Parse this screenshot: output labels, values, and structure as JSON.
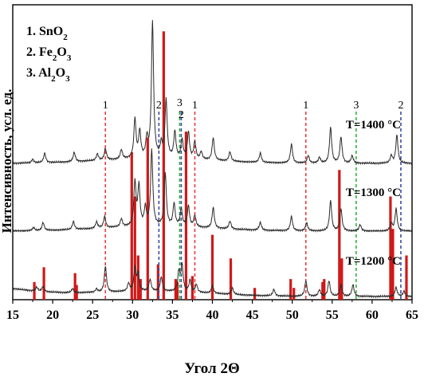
{
  "chart_data": {
    "type": "line",
    "xlabel": "Угол 2Θ",
    "ylabel": "Интенсивность, усл. ед.",
    "xlim": [
      15,
      65
    ],
    "x_ticks": [
      15,
      20,
      25,
      30,
      35,
      40,
      45,
      50,
      55,
      60,
      65
    ],
    "legend": [
      "1. SnO2",
      "2. Fe2O3",
      "3. Al2O3"
    ],
    "legend_placement": "top-left",
    "series": [
      {
        "name": "T=1400 °C",
        "peaks": [
          [
            17.5,
            4
          ],
          [
            19,
            10
          ],
          [
            22.7,
            10
          ],
          [
            25.6,
            7
          ],
          [
            26.6,
            12
          ],
          [
            28.6,
            10
          ],
          [
            30.3,
            42
          ],
          [
            30.9,
            28
          ],
          [
            31.8,
            20
          ],
          [
            32.5,
            145
          ],
          [
            33.6,
            14
          ],
          [
            34.2,
            62
          ],
          [
            35.3,
            28
          ],
          [
            36.2,
            20
          ],
          [
            37.0,
            28
          ],
          [
            37.8,
            18
          ],
          [
            38.6,
            8
          ],
          [
            40.1,
            24
          ],
          [
            42.2,
            10
          ],
          [
            46.0,
            10
          ],
          [
            49.9,
            20
          ],
          [
            52.0,
            8
          ],
          [
            53.4,
            6
          ],
          [
            54.8,
            38
          ],
          [
            56.1,
            28
          ],
          [
            57.5,
            8
          ],
          [
            62.4,
            8
          ],
          [
            63.1,
            30
          ]
        ]
      },
      {
        "name": "T=1300 °C",
        "peaks": [
          [
            17.6,
            4
          ],
          [
            18.8,
            10
          ],
          [
            22.6,
            10
          ],
          [
            25.5,
            8
          ],
          [
            26.5,
            14
          ],
          [
            28.6,
            10
          ],
          [
            30.3,
            55
          ],
          [
            30.8,
            50
          ],
          [
            31.6,
            22
          ],
          [
            32.4,
            95
          ],
          [
            34.1,
            66
          ],
          [
            35.2,
            28
          ],
          [
            36.1,
            22
          ],
          [
            37.0,
            26
          ],
          [
            37.8,
            14
          ],
          [
            40.1,
            26
          ],
          [
            42.2,
            10
          ],
          [
            46.0,
            10
          ],
          [
            49.9,
            18
          ],
          [
            51.8,
            10
          ],
          [
            54.8,
            38
          ],
          [
            56.1,
            28
          ],
          [
            58.5,
            8
          ],
          [
            62.4,
            10
          ],
          [
            63.0,
            28
          ]
        ]
      },
      {
        "name": "T=1200 °C",
        "peaks": [
          [
            18.0,
            6
          ],
          [
            18.8,
            8
          ],
          [
            22.5,
            6
          ],
          [
            25.5,
            5
          ],
          [
            26.6,
            40
          ],
          [
            29.5,
            12
          ],
          [
            30.3,
            36
          ],
          [
            30.7,
            26
          ],
          [
            32.2,
            18
          ],
          [
            33.6,
            22
          ],
          [
            35.8,
            30
          ],
          [
            36.2,
            40
          ],
          [
            37.2,
            18
          ],
          [
            38.0,
            12
          ],
          [
            40.0,
            12
          ],
          [
            42.5,
            10
          ],
          [
            47.7,
            10
          ],
          [
            51.7,
            24
          ],
          [
            53.4,
            10
          ],
          [
            54.6,
            24
          ],
          [
            56.1,
            18
          ],
          [
            57.6,
            18
          ],
          [
            63.0,
            14
          ],
          [
            64.0,
            8
          ]
        ]
      }
    ],
    "reference_bars": [
      [
        17.7,
        0.06
      ],
      [
        18.9,
        0.11
      ],
      [
        22.8,
        0.09
      ],
      [
        23.0,
        0.05
      ],
      [
        29.9,
        0.5
      ],
      [
        30.3,
        0.35
      ],
      [
        30.7,
        0.15
      ],
      [
        31.0,
        0.07
      ],
      [
        31.9,
        0.55
      ],
      [
        33.2,
        0.12
      ],
      [
        33.9,
        0.91
      ],
      [
        35.4,
        0.07
      ],
      [
        35.6,
        0.06
      ],
      [
        36.7,
        0.57
      ],
      [
        37.5,
        0.08
      ],
      [
        40.0,
        0.22
      ],
      [
        42.3,
        0.14
      ],
      [
        45.3,
        0.04
      ],
      [
        49.8,
        0.07
      ],
      [
        50.2,
        0.04
      ],
      [
        53.8,
        0.06
      ],
      [
        54.0,
        0.07
      ],
      [
        55.9,
        0.44
      ],
      [
        56.2,
        0.14
      ],
      [
        62.3,
        0.35
      ],
      [
        62.6,
        0.24
      ],
      [
        64.3,
        0.15
      ]
    ],
    "reference_lines": [
      {
        "label": "1",
        "x": 26.6,
        "color": "#ec3b3b"
      },
      {
        "label": "2",
        "x": 33.3,
        "color": "#3a4aa8"
      },
      {
        "label": "3",
        "x": 35.9,
        "color": "#2fb53a"
      },
      {
        "label": "2",
        "x": 36.1,
        "color": "#3a4aa8"
      },
      {
        "label": "1",
        "x": 37.8,
        "color": "#ec3b3b"
      },
      {
        "label": "1",
        "x": 51.7,
        "color": "#ec3b3b"
      },
      {
        "label": "3",
        "x": 58.0,
        "color": "#2fb53a"
      },
      {
        "label": "2",
        "x": 63.6,
        "color": "#3a4aa8"
      }
    ],
    "colors": {
      "trace": "#2b2b2b",
      "bars": "#d01818"
    }
  }
}
